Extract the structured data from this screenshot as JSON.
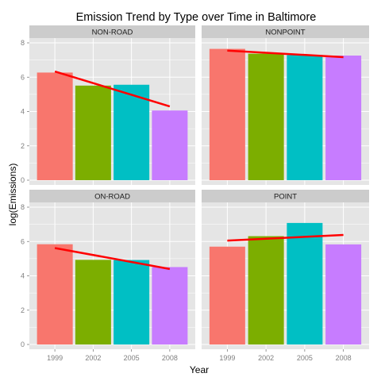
{
  "chart_data": {
    "type": "bar",
    "title": "Emission Trend by Type over Time in Baltimore",
    "xlabel": "Year",
    "ylabel": "log(Emissions)",
    "categories": [
      "1999",
      "2002",
      "2005",
      "2008"
    ],
    "ylim": [
      0,
      8
    ],
    "yticks": [
      "0",
      "2",
      "4",
      "6",
      "8"
    ],
    "grid": true,
    "legend": "none",
    "colors": {
      "1999": "#F8766D",
      "2002": "#7CAE00",
      "2005": "#00BFC4",
      "2008": "#C77CFF",
      "trend": "#ff0000",
      "panel_background": "#e5e5e5",
      "strip_background": "#cccccc",
      "grid_line": "#ffffff"
    },
    "panels": [
      {
        "name": "NON-ROAD",
        "values": [
          6.27,
          5.51,
          5.56,
          4.06
        ],
        "trend": [
          6.33,
          4.3
        ]
      },
      {
        "name": "NONPOINT",
        "values": [
          7.65,
          7.37,
          7.29,
          7.26
        ],
        "trend": [
          7.55,
          7.17
        ]
      },
      {
        "name": "ON-ROAD",
        "values": [
          5.84,
          4.93,
          4.92,
          4.51
        ],
        "trend": [
          5.62,
          4.4
        ]
      },
      {
        "name": "POINT",
        "values": [
          5.7,
          6.31,
          7.08,
          5.83
        ],
        "trend": [
          6.05,
          6.38
        ]
      }
    ]
  }
}
